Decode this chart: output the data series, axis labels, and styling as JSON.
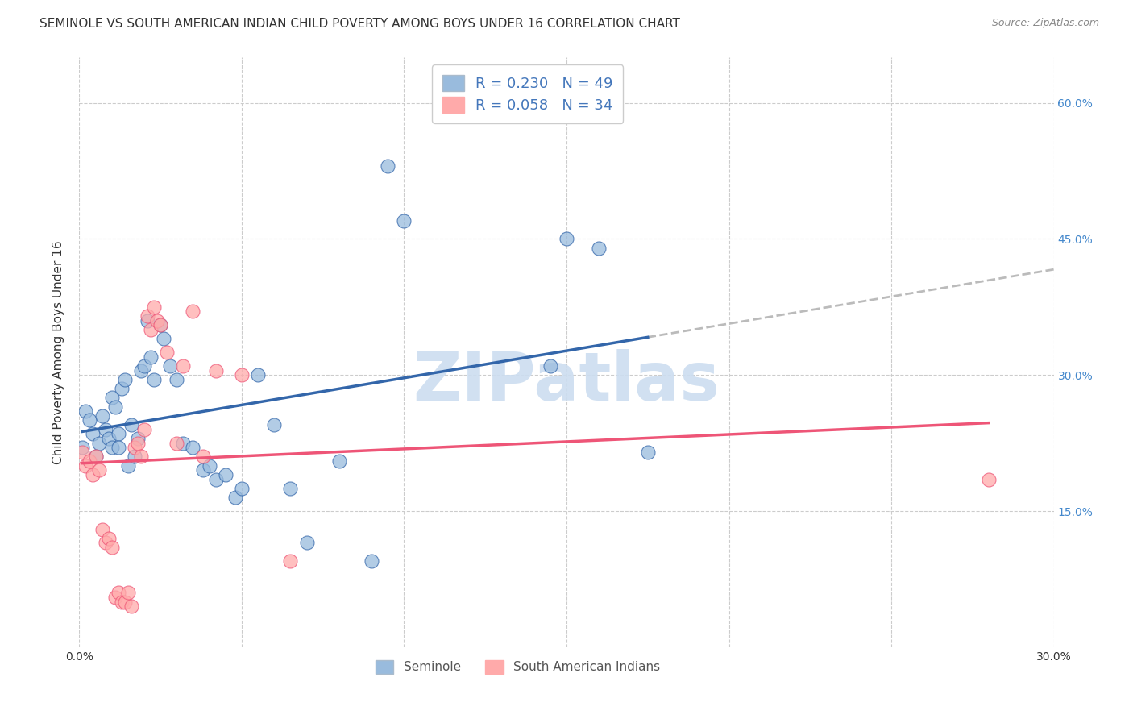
{
  "title": "SEMINOLE VS SOUTH AMERICAN INDIAN CHILD POVERTY AMONG BOYS UNDER 16 CORRELATION CHART",
  "source": "Source: ZipAtlas.com",
  "ylabel": "Child Poverty Among Boys Under 16",
  "xlim": [
    0.0,
    0.3
  ],
  "ylim": [
    0.0,
    0.65
  ],
  "x_ticks": [
    0.0,
    0.05,
    0.1,
    0.15,
    0.2,
    0.25,
    0.3
  ],
  "x_tick_labels": [
    "0.0%",
    "",
    "",
    "",
    "",
    "",
    "30.0%"
  ],
  "y_ticks_right": [
    0.15,
    0.3,
    0.45,
    0.6
  ],
  "y_tick_labels_right": [
    "15.0%",
    "30.0%",
    "45.0%",
    "60.0%"
  ],
  "seminole_color": "#99BBDD",
  "south_american_color": "#FFAAAA",
  "seminole_line_color": "#3366AA",
  "south_american_line_color": "#EE5577",
  "dashed_line_color": "#BBBBBB",
  "R_seminole": 0.23,
  "N_seminole": 49,
  "R_south_american": 0.058,
  "N_south_american": 34,
  "watermark": "ZIPatlas",
  "seminole_x": [
    0.001,
    0.002,
    0.003,
    0.004,
    0.005,
    0.006,
    0.007,
    0.008,
    0.009,
    0.01,
    0.01,
    0.011,
    0.012,
    0.012,
    0.013,
    0.014,
    0.015,
    0.016,
    0.017,
    0.018,
    0.019,
    0.02,
    0.021,
    0.022,
    0.023,
    0.025,
    0.026,
    0.028,
    0.03,
    0.032,
    0.035,
    0.038,
    0.04,
    0.042,
    0.045,
    0.048,
    0.05,
    0.055,
    0.06,
    0.065,
    0.07,
    0.08,
    0.09,
    0.095,
    0.1,
    0.145,
    0.15,
    0.16,
    0.175
  ],
  "seminole_y": [
    0.22,
    0.26,
    0.25,
    0.235,
    0.21,
    0.225,
    0.255,
    0.24,
    0.23,
    0.22,
    0.275,
    0.265,
    0.235,
    0.22,
    0.285,
    0.295,
    0.2,
    0.245,
    0.21,
    0.23,
    0.305,
    0.31,
    0.36,
    0.32,
    0.295,
    0.355,
    0.34,
    0.31,
    0.295,
    0.225,
    0.22,
    0.195,
    0.2,
    0.185,
    0.19,
    0.165,
    0.175,
    0.3,
    0.245,
    0.175,
    0.115,
    0.205,
    0.095,
    0.53,
    0.47,
    0.31,
    0.45,
    0.44,
    0.215
  ],
  "south_american_x": [
    0.001,
    0.002,
    0.003,
    0.004,
    0.005,
    0.006,
    0.007,
    0.008,
    0.009,
    0.01,
    0.011,
    0.012,
    0.013,
    0.014,
    0.015,
    0.016,
    0.017,
    0.018,
    0.019,
    0.02,
    0.021,
    0.022,
    0.023,
    0.024,
    0.025,
    0.027,
    0.03,
    0.032,
    0.035,
    0.038,
    0.042,
    0.05,
    0.065,
    0.28
  ],
  "south_american_y": [
    0.215,
    0.2,
    0.205,
    0.19,
    0.21,
    0.195,
    0.13,
    0.115,
    0.12,
    0.11,
    0.055,
    0.06,
    0.05,
    0.05,
    0.06,
    0.045,
    0.22,
    0.225,
    0.21,
    0.24,
    0.365,
    0.35,
    0.375,
    0.36,
    0.355,
    0.325,
    0.225,
    0.31,
    0.37,
    0.21,
    0.305,
    0.3,
    0.095,
    0.185
  ],
  "title_fontsize": 11,
  "axis_label_fontsize": 11,
  "tick_fontsize": 10,
  "legend_fontsize": 13,
  "background_color": "#FFFFFF",
  "grid_color": "#CCCCCC"
}
